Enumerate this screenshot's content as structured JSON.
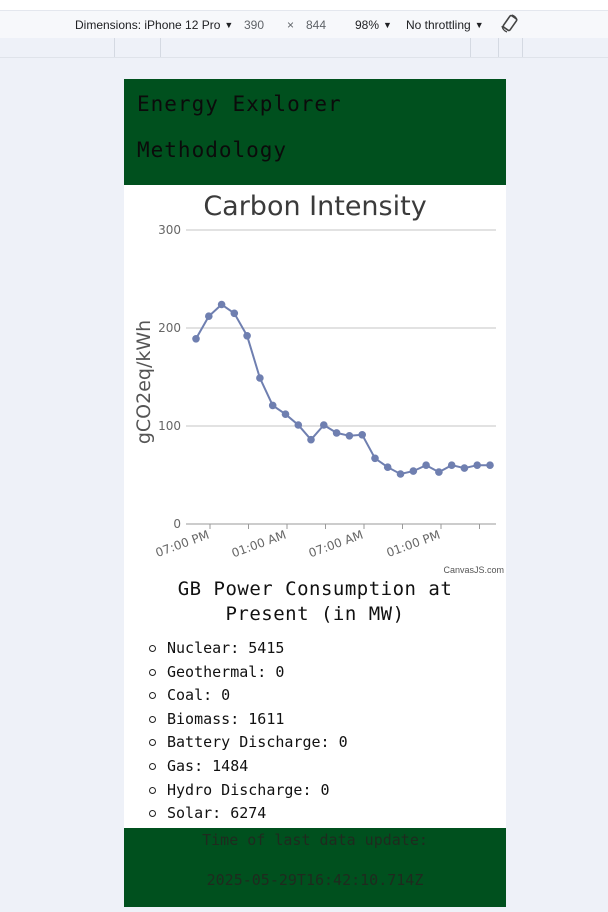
{
  "devtools": {
    "dimensions_label": "Dimensions: iPhone 12 Pro",
    "width": "390",
    "times": "×",
    "height": "844",
    "zoom": "98%",
    "throttling": "No throttling",
    "rotate_icon": "rotate-icon"
  },
  "nav": {
    "title": "Energy Explorer",
    "methodology": "Methodology"
  },
  "chart_data": {
    "type": "line",
    "title": "Carbon Intensity",
    "ylabel": "gCO2eq/kWh",
    "xlabel": "",
    "ylim": [
      0,
      300
    ],
    "yticks": [
      0,
      100,
      200,
      300
    ],
    "xtick_labels": [
      "07:00 PM",
      "01:00 AM",
      "07:00 AM",
      "01:00 PM"
    ],
    "grid": true,
    "color": "#6f7fb0",
    "credit": "CanvasJS.com",
    "series": [
      {
        "values": [
          189,
          212,
          224,
          215,
          192,
          149,
          121,
          112,
          101,
          86,
          101,
          93,
          90,
          91,
          67,
          58,
          51,
          54,
          60,
          53,
          60,
          57,
          60,
          60
        ]
      }
    ]
  },
  "consumption": {
    "title_line1": "GB Power Consumption at",
    "title_line2": "Present (in MW)",
    "items": [
      "Nuclear: 5415",
      "Geothermal: 0",
      "Coal: 0",
      "Biomass: 1611",
      "Battery Discharge: 0",
      "Gas: 1484",
      "Hydro Discharge: 0",
      "Solar: 6274"
    ]
  },
  "footer": {
    "label": "Time of last data update:",
    "timestamp": "2025-05-29T16:42:10.714Z"
  }
}
